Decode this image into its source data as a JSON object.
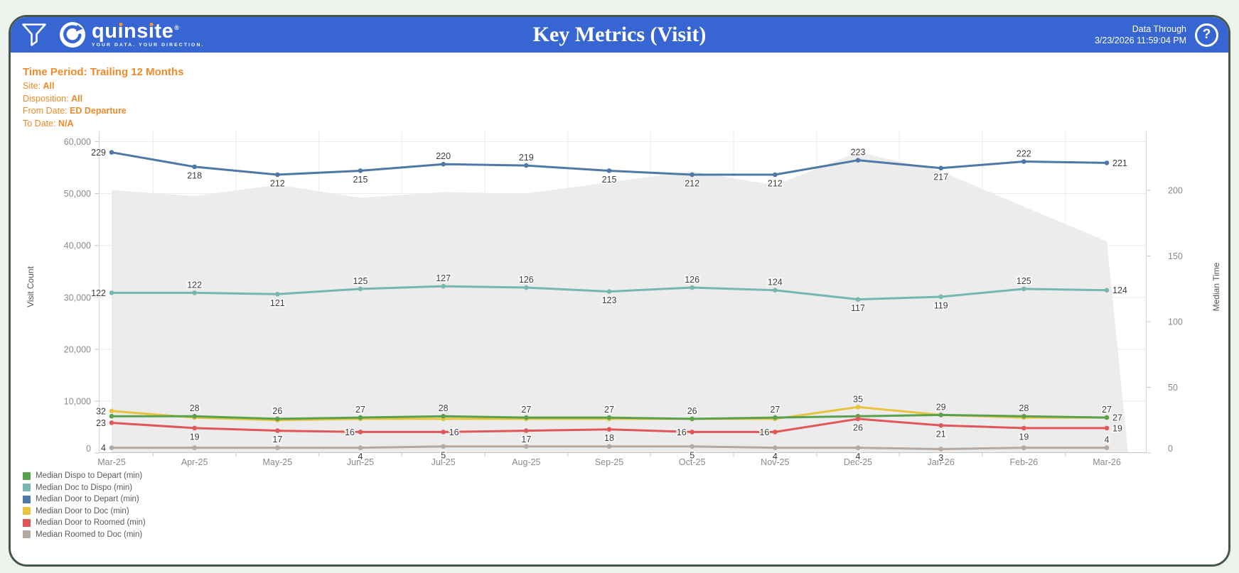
{
  "header": {
    "logo_text": "quinsite",
    "logo_mark": "®",
    "logo_tagline": "YOUR DATA. YOUR DIRECTION.",
    "title": "Key Metrics (Visit)",
    "data_through_label": "Data Through",
    "data_through_value": "3/23/2026 11:59:04 PM",
    "help_icon": "question-mark",
    "filter_icon": "funnel",
    "colors": {
      "bar_blue": "#3766d2",
      "accent_orange": "#ee8a2a"
    }
  },
  "filters": {
    "time_period": {
      "label": "Time Period:",
      "value": "Trailing 12 Months"
    },
    "site": {
      "label": "Site:",
      "value": "All"
    },
    "disposition": {
      "label": "Disposition:",
      "value": "All"
    },
    "from_date": {
      "label": "From Date:",
      "value": "ED Departure"
    },
    "to_date": {
      "label": "To Date:",
      "value": "N/A"
    }
  },
  "chart_data": {
    "type": "line",
    "title": "Key Metrics (Visit)",
    "categories": [
      "Mar-25",
      "Apr-25",
      "May-25",
      "Jun-25",
      "Jul-25",
      "Aug-25",
      "Sep-25",
      "Oct-25",
      "Nov-25",
      "Dec-25",
      "Jan-26",
      "Feb-26",
      "Mar-26"
    ],
    "left_axis": {
      "title": "Visit Count",
      "tick_values": [
        60000,
        50000,
        40000,
        30000,
        20000,
        10000,
        0
      ],
      "max": 62000
    },
    "right_axis": {
      "title": "Median Time",
      "tick_values": [
        200,
        150,
        100,
        50,
        0
      ],
      "max": 245
    },
    "grid": true,
    "legend_position": "bottom-left",
    "area_series": {
      "name": "Visit Count",
      "axis": "left",
      "color": "#ececec",
      "values": [
        50700,
        49500,
        51700,
        49200,
        50300,
        50000,
        52200,
        54300,
        51600,
        58000,
        54300,
        47500,
        40800
      ],
      "note": "unlabeled gray area, values estimated from gridlines"
    },
    "series": [
      {
        "name": "Median Door to Doc (min)",
        "color": "#e8c33d",
        "axis": "right",
        "values": [
          32,
          27,
          25,
          26,
          26,
          26,
          26,
          26,
          26,
          35,
          29,
          27,
          27
        ],
        "label_pos": [
          "left",
          null,
          null,
          null,
          null,
          null,
          null,
          null,
          null,
          "above",
          null,
          null,
          "above"
        ]
      },
      {
        "name": "Median Dispo to Depart (min)",
        "color": "#59a14f",
        "axis": "right",
        "values": [
          28,
          28,
          26,
          27,
          28,
          27,
          27,
          26,
          27,
          28,
          29,
          28,
          27
        ],
        "label_pos": [
          null,
          "above",
          "above",
          "above",
          "above",
          "above",
          "above",
          "above",
          "above",
          null,
          "above",
          "above",
          "right"
        ]
      },
      {
        "name": "Median Roomed to Doc (min)",
        "color": "#b3a9a1",
        "axis": "right",
        "values": [
          4,
          4,
          4,
          4,
          5,
          5,
          5,
          5,
          4,
          4,
          3,
          4,
          4
        ],
        "label_pos": [
          "left",
          null,
          null,
          "below",
          "below",
          null,
          null,
          "below",
          "below",
          "below",
          "below",
          null,
          "above"
        ]
      },
      {
        "name": "Median Door to Roomed (min)",
        "color": "#e15759",
        "axis": "right",
        "values": [
          23,
          19,
          17,
          16,
          16,
          17,
          18,
          16,
          16,
          26,
          21,
          19,
          19
        ],
        "label_pos": [
          "left",
          "below",
          "below",
          "left",
          "right",
          "below",
          "below",
          "left",
          "left",
          "below",
          "below",
          "below",
          "right"
        ]
      },
      {
        "name": "Median Doc to Dispo (min)",
        "color": "#76b7b2",
        "axis": "right",
        "values": [
          122,
          122,
          121,
          125,
          127,
          126,
          123,
          126,
          124,
          117,
          119,
          125,
          124
        ],
        "label_pos": [
          "left",
          "above",
          "below",
          "above",
          "above",
          "above",
          "below",
          "above",
          "above",
          "below",
          "below",
          "above",
          "right"
        ]
      },
      {
        "name": "Median Door to Depart (min)",
        "color": "#4e79a7",
        "axis": "right",
        "values": [
          229,
          218,
          212,
          215,
          220,
          219,
          215,
          212,
          212,
          223,
          217,
          222,
          221
        ],
        "label_pos": [
          "left",
          "below",
          "below",
          "below",
          "above",
          "above",
          "below",
          "below",
          "below",
          "above",
          "below",
          "above",
          "right"
        ]
      }
    ],
    "legend": [
      {
        "label": "Median Dispo to Depart (min)",
        "color": "#59a14f"
      },
      {
        "label": "Median Doc to Dispo (min)",
        "color": "#76b7b2"
      },
      {
        "label": "Median Door to Depart (min)",
        "color": "#4e79a7"
      },
      {
        "label": "Median Door to Doc (min)",
        "color": "#e8c33d"
      },
      {
        "label": "Median Door to Roomed (min)",
        "color": "#e15759"
      },
      {
        "label": "Median Roomed to Doc (min)",
        "color": "#b3a9a1"
      }
    ]
  }
}
